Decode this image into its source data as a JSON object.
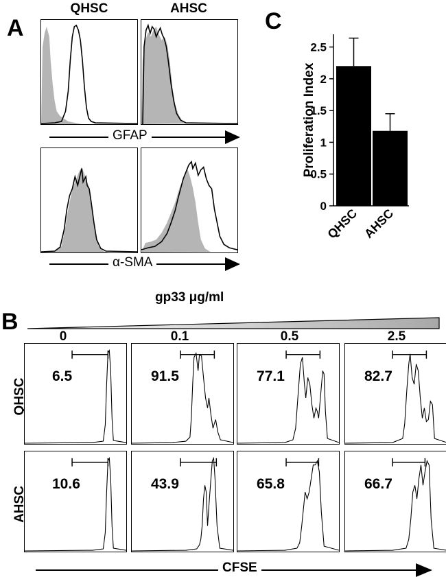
{
  "panel_a": {
    "letter": "A",
    "col_labels": [
      "QHSC",
      "AHSC"
    ],
    "marker_labels": [
      "GFAP",
      "α-SMA"
    ]
  },
  "panel_b": {
    "letter": "B",
    "title": "gp33 μg/ml",
    "concentrations": [
      "0",
      "0.1",
      "0.5",
      "2.5"
    ],
    "row_labels": [
      "QHSC",
      "AHSC"
    ],
    "xlabel": "CFSE",
    "percentages": [
      [
        "6.5",
        "91.5",
        "77.1",
        "82.7"
      ],
      [
        "10.6",
        "43.9",
        "65.8",
        "66.7"
      ]
    ]
  },
  "panel_c": {
    "letter": "C"
  },
  "chart_data": [
    {
      "type": "bar",
      "categories": [
        "QHSC",
        "AHSC"
      ],
      "values": [
        2.2,
        1.18
      ],
      "errors": [
        0.44,
        0.27
      ],
      "ylabel": "Proliferation Index",
      "ylim": [
        0,
        2.7
      ],
      "yticks": [
        "0",
        "0.5",
        "1",
        "1.5",
        "2",
        "2.5"
      ],
      "bar_color": "#000000"
    },
    {
      "type": "histogram",
      "panel": "A",
      "series": [
        {
          "row": "GFAP",
          "col": "QHSC",
          "filled": "isotype",
          "line": "stained"
        },
        {
          "row": "GFAP",
          "col": "AHSC",
          "filled": "isotype",
          "line": "stained"
        },
        {
          "row": "α-SMA",
          "col": "QHSC",
          "filled": "isotype",
          "line": "stained"
        },
        {
          "row": "α-SMA",
          "col": "AHSC",
          "filled": "isotype",
          "line": "stained"
        }
      ]
    },
    {
      "type": "histogram",
      "panel": "B",
      "xlabel": "CFSE",
      "percent_divided": [
        [
          6.5,
          91.5,
          77.1,
          82.7
        ],
        [
          10.6,
          43.9,
          65.8,
          66.7
        ]
      ]
    }
  ]
}
